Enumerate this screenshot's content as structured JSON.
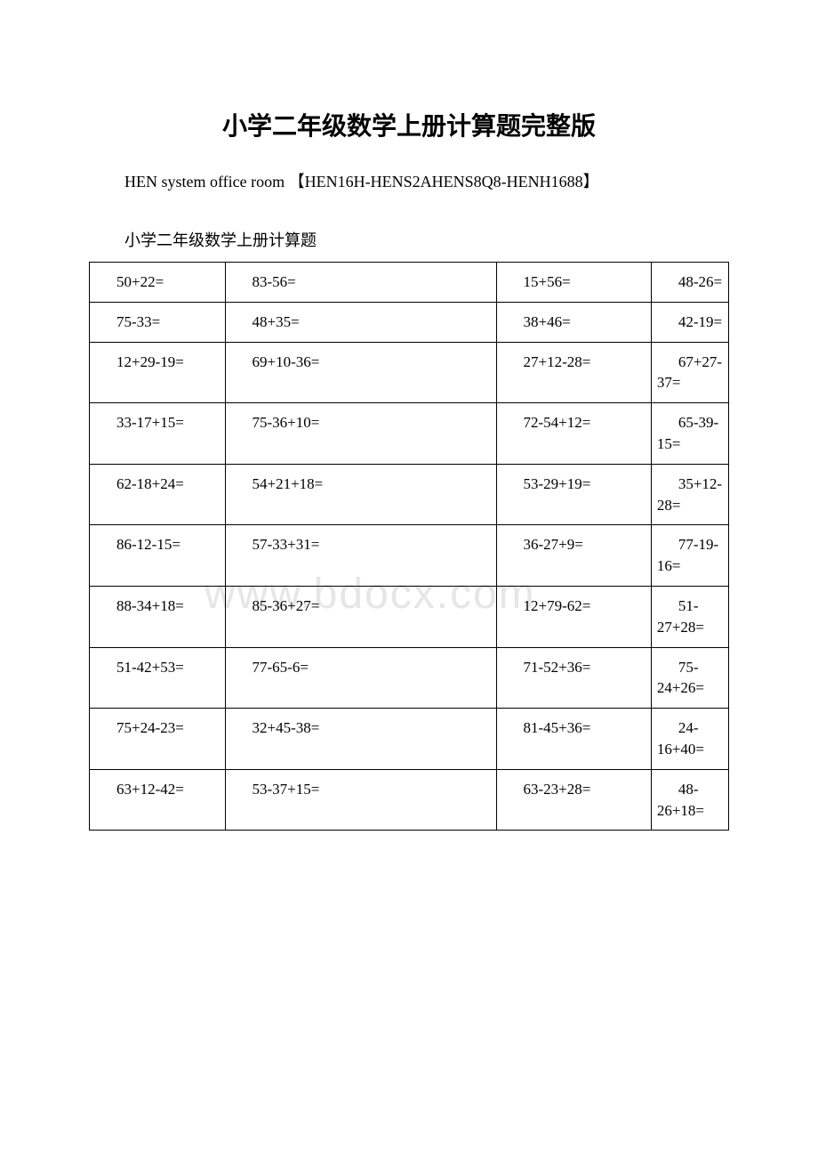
{
  "title": "小学二年级数学上册计算题完整版",
  "subtitle": "HEN system office room 【HEN16H-HENS2AHENS8Q8-HENH1688】",
  "caption": "小学二年级数学上册计算题",
  "watermark": "www.bdocx.com",
  "table": {
    "rows": [
      [
        "50+22=",
        "83-56=",
        "15+56=",
        "48-26="
      ],
      [
        "75-33=",
        "48+35=",
        "38+46=",
        "42-19="
      ],
      [
        "12+29-19=",
        "69+10-36=",
        "27+12-28=",
        "67+27-37="
      ],
      [
        "33-17+15=",
        "75-36+10=",
        "72-54+12=",
        "65-39-15="
      ],
      [
        "62-18+24=",
        "54+21+18=",
        "53-29+19=",
        "35+12-28="
      ],
      [
        "86-12-15=",
        "57-33+31=",
        "36-27+9=",
        "77-19-16="
      ],
      [
        "88-34+18=",
        "85-36+27=",
        "12+79-62=",
        "51-27+28="
      ],
      [
        "51-42+53=",
        "77-65-6=",
        "71-52+36=",
        "75-24+26="
      ],
      [
        "75+24-23=",
        "32+45-38=",
        "81-45+36=",
        "24-16+40="
      ],
      [
        "63+12-42=",
        "53-37+15=",
        "63-23+28=",
        "48-26+18="
      ]
    ]
  },
  "colors": {
    "background": "#ffffff",
    "text": "#000000",
    "border": "#000000",
    "watermark": "#e6e6e6"
  },
  "typography": {
    "title_fontsize": 28,
    "subtitle_fontsize": 18,
    "cell_fontsize": 17,
    "title_weight": "bold"
  }
}
